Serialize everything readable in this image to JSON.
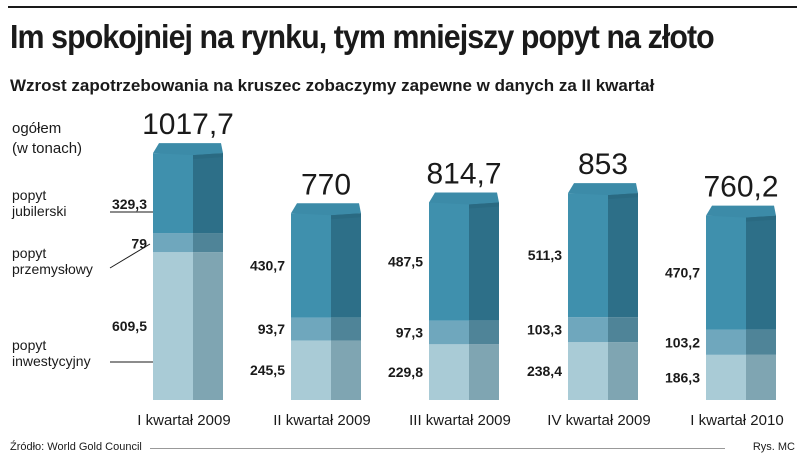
{
  "header": {
    "title": "Im spokojniej na rynku, tym mniejszy popyt na złoto",
    "subtitle": "Wzrost zapotrzebowania na kruszec zobaczymy zapewne w danych za II kwartał"
  },
  "footer": {
    "source": "Źródło: World Gold Council",
    "credit": "Rys. MC"
  },
  "chart_data": {
    "type": "bar",
    "stacked": true,
    "ylabel_line1": "ogółem",
    "ylabel_line2": "(w tonach)",
    "categories": [
      "I kwartał 2009",
      "II kwartał 2009",
      "III kwartał 2009",
      "IV kwartał 2009",
      "I kwartał 2010"
    ],
    "totals": [
      "1017,7",
      "770",
      "814,7",
      "853",
      "760,2"
    ],
    "series": [
      {
        "name_line1": "popyt",
        "name_line2": "inwestycyjny",
        "values": [
          609.5,
          245.5,
          229.8,
          238.4,
          186.3
        ],
        "labels": [
          "609,5",
          "245,5",
          "229,8",
          "238,4",
          "186,3"
        ],
        "color_front": "#a9cbd6",
        "color_side": "#7fa5b2"
      },
      {
        "name_line1": "popyt",
        "name_line2": "przemysłowy",
        "values": [
          79,
          93.7,
          97.3,
          103.3,
          103.2
        ],
        "labels": [
          "79",
          "93,7",
          "97,3",
          "103,3",
          "103,2"
        ],
        "color_front": "#6fa7bd",
        "color_side": "#4f8498"
      },
      {
        "name_line1": "popyt",
        "name_line2": "jubilerski",
        "values": [
          329.3,
          430.7,
          487.5,
          511.3,
          470.7
        ],
        "labels": [
          "329,3",
          "430,7",
          "487,5",
          "511,3",
          "470,7"
        ],
        "color_front": "#3f90ad",
        "color_side": "#2d6f88"
      }
    ],
    "top_colors": {
      "front": "#3c8ba8",
      "side": "#2a6a82"
    }
  }
}
